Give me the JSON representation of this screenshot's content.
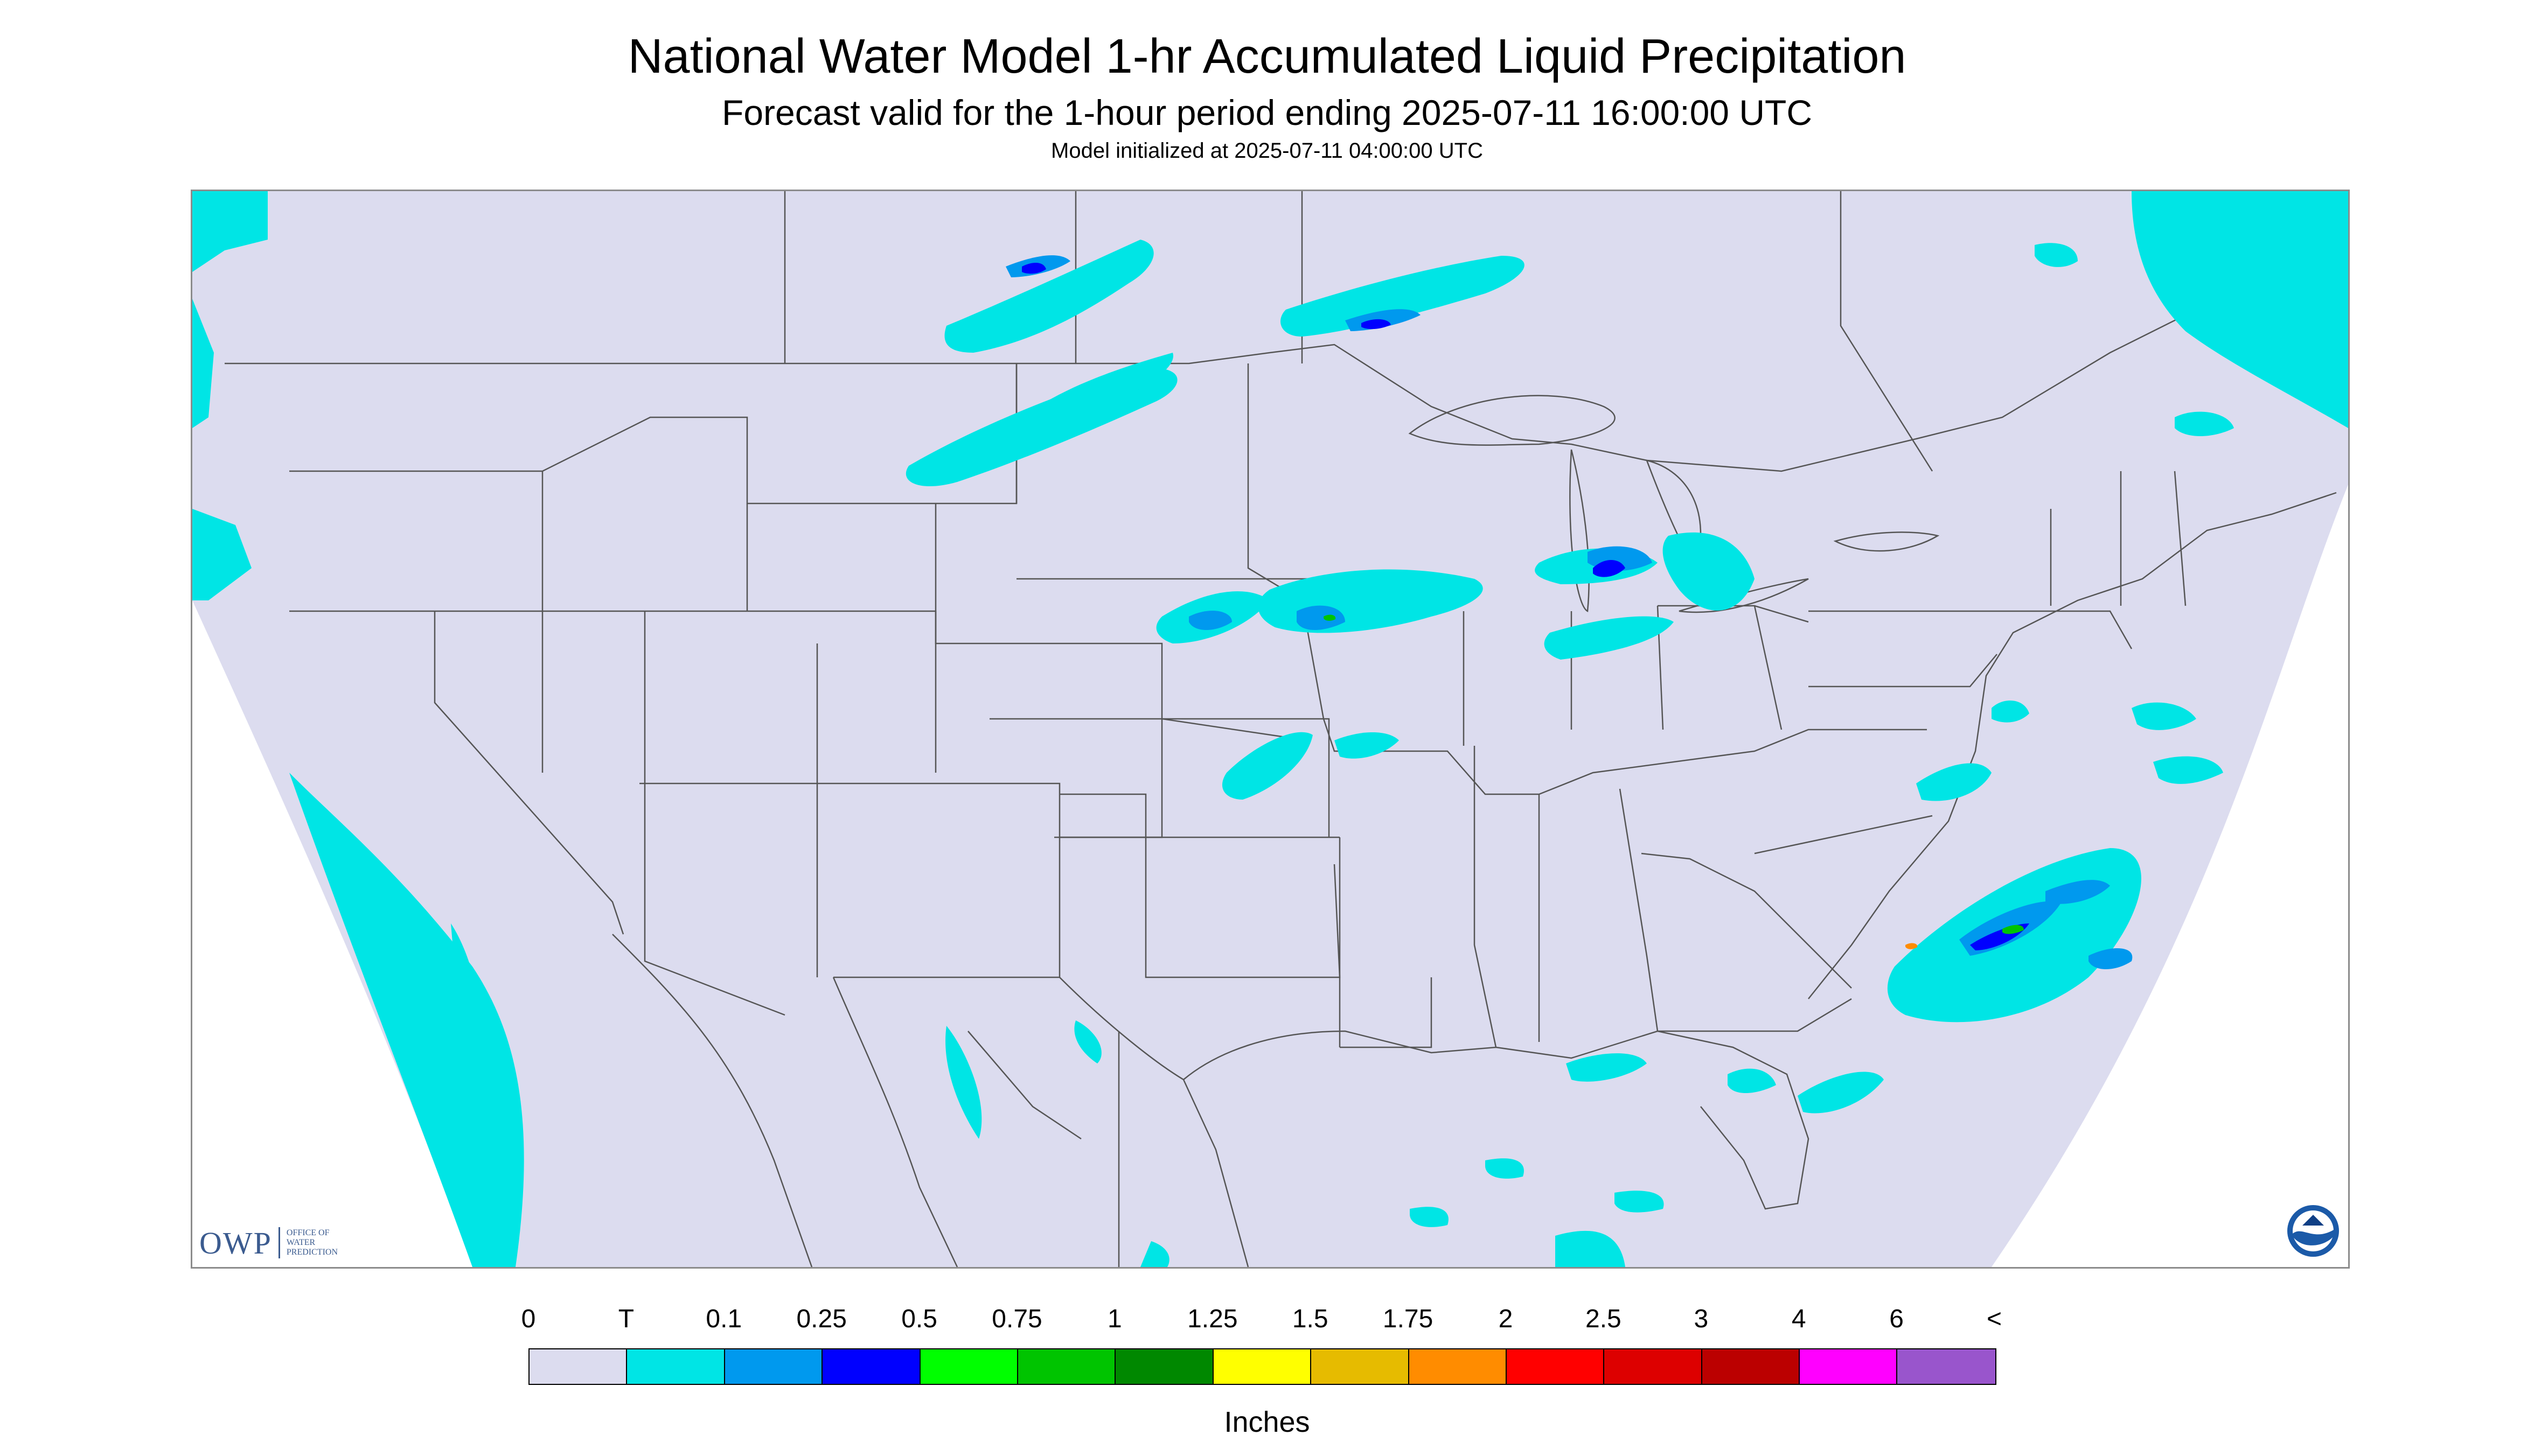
{
  "title": "National Water Model 1-hr Accumulated Liquid Precipitation",
  "subtitle": "Forecast valid for the 1-hour period ending 2025-07-11 16:00:00 UTC",
  "init_text": "Model initialized at 2025-07-11 04:00:00 UTC",
  "logo": {
    "mark": "OWP",
    "line1": "OFFICE OF",
    "line2": "WATER",
    "line3": "PREDICTION"
  },
  "noaa_logo": "noaa-logo",
  "legend": {
    "labels": [
      "0",
      "T",
      "0.1",
      "0.25",
      "0.5",
      "0.75",
      "1",
      "1.25",
      "1.5",
      "1.75",
      "2",
      "2.5",
      "3",
      "4",
      "6",
      "<"
    ],
    "colors": [
      "#dcdcef",
      "#00e5e5",
      "#0099ee",
      "#0000ff",
      "#00ff00",
      "#00c400",
      "#008800",
      "#ffff00",
      "#e6bb00",
      "#ff8c00",
      "#ff0000",
      "#dd0000",
      "#bb0000",
      "#ff00ff",
      "#9955cc"
    ],
    "units": "Inches"
  },
  "map": {
    "land_color": "#dcdcef",
    "outside_color": "#ffffff",
    "precip_colors": {
      "trace": "#00e5e5",
      "light": "#0099ee",
      "moderate": "#0000ff",
      "heavy": "#00c400",
      "very_heavy": "#ff8c00"
    }
  }
}
